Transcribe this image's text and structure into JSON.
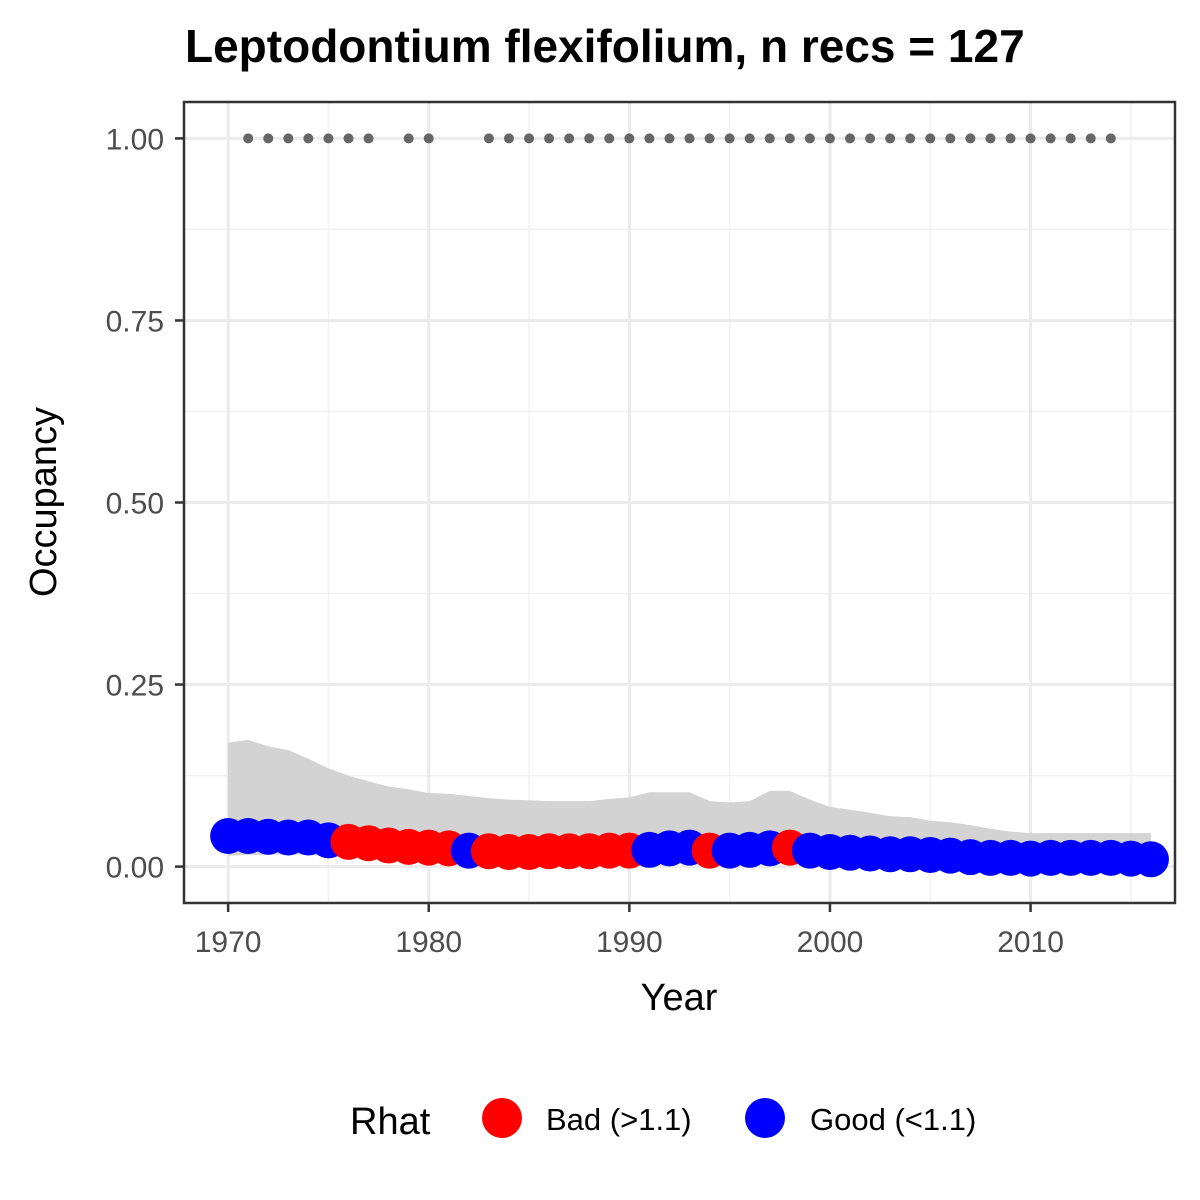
{
  "chart_data": {
    "type": "line",
    "title": "Leptodontium flexifolium, n recs = 127",
    "xlabel": "Year",
    "ylabel": "Occupancy",
    "xlim": [
      1967.8,
      2017.2
    ],
    "ylim": [
      -0.05,
      1.05
    ],
    "x_ticks": [
      1970,
      1980,
      1990,
      2000,
      2010
    ],
    "x_tick_labels": [
      "1970",
      "1980",
      "1990",
      "2000",
      "2010"
    ],
    "y_ticks": [
      0,
      0.25,
      0.5,
      0.75,
      1.0
    ],
    "y_tick_labels": [
      "0.00",
      "0.25",
      "0.50",
      "0.75",
      "1.00"
    ],
    "grid": true,
    "legend": {
      "title": "Rhat",
      "position": "bottom",
      "entries": [
        {
          "label": "Bad (>1.1)",
          "color": "#ff0000"
        },
        {
          "label": "Good (<1.1)",
          "color": "#0000ff"
        }
      ]
    },
    "colors": {
      "bad": "#ff0000",
      "good": "#0000ff",
      "ribbon": "#d3d3d3",
      "records": "#666666"
    },
    "years": [
      1970,
      1971,
      1972,
      1973,
      1974,
      1975,
      1976,
      1977,
      1978,
      1979,
      1980,
      1981,
      1982,
      1983,
      1984,
      1985,
      1986,
      1987,
      1988,
      1989,
      1990,
      1991,
      1992,
      1993,
      1994,
      1995,
      1996,
      1997,
      1998,
      1999,
      2000,
      2001,
      2002,
      2003,
      2004,
      2005,
      2006,
      2007,
      2008,
      2009,
      2010,
      2011,
      2012,
      2013,
      2014,
      2015,
      2016
    ],
    "occupancy": [
      0.042,
      0.042,
      0.041,
      0.04,
      0.04,
      0.036,
      0.034,
      0.032,
      0.029,
      0.027,
      0.026,
      0.025,
      0.022,
      0.021,
      0.02,
      0.02,
      0.021,
      0.021,
      0.021,
      0.022,
      0.022,
      0.023,
      0.025,
      0.026,
      0.022,
      0.022,
      0.023,
      0.025,
      0.026,
      0.022,
      0.02,
      0.019,
      0.018,
      0.017,
      0.017,
      0.016,
      0.015,
      0.013,
      0.012,
      0.012,
      0.011,
      0.012,
      0.012,
      0.012,
      0.012,
      0.011,
      0.01
    ],
    "rhat": [
      "Good",
      "Good",
      "Good",
      "Good",
      "Good",
      "Good",
      "Bad",
      "Bad",
      "Bad",
      "Bad",
      "Bad",
      "Bad",
      "Good",
      "Bad",
      "Bad",
      "Bad",
      "Bad",
      "Bad",
      "Bad",
      "Bad",
      "Bad",
      "Good",
      "Good",
      "Good",
      "Bad",
      "Good",
      "Good",
      "Good",
      "Bad",
      "Good",
      "Good",
      "Good",
      "Good",
      "Good",
      "Good",
      "Good",
      "Good",
      "Good",
      "Good",
      "Good",
      "Good",
      "Good",
      "Good",
      "Good",
      "Good",
      "Good",
      "Good"
    ],
    "ci_lower": [
      0.015,
      0.016,
      0.016,
      0.017,
      0.016,
      0.014,
      0.012,
      0.011,
      0.01,
      0.009,
      0.009,
      0.008,
      0.007,
      0.007,
      0.007,
      0.007,
      0.007,
      0.007,
      0.007,
      0.007,
      0.007,
      0.007,
      0.007,
      0.007,
      0.006,
      0.006,
      0.006,
      0.006,
      0.006,
      0.006,
      0.005,
      0.005,
      0.004,
      0.004,
      0.004,
      0.004,
      0.003,
      0.003,
      0.003,
      0.003,
      0.003,
      0.003,
      0.003,
      0.003,
      0.003,
      0.003,
      0.003
    ],
    "ci_upper": [
      0.17,
      0.174,
      0.165,
      0.16,
      0.148,
      0.135,
      0.125,
      0.117,
      0.11,
      0.106,
      0.101,
      0.1,
      0.097,
      0.094,
      0.092,
      0.091,
      0.09,
      0.09,
      0.09,
      0.093,
      0.095,
      0.102,
      0.102,
      0.102,
      0.09,
      0.088,
      0.09,
      0.104,
      0.104,
      0.092,
      0.082,
      0.078,
      0.074,
      0.069,
      0.068,
      0.063,
      0.061,
      0.057,
      0.052,
      0.048,
      0.046,
      0.046,
      0.046,
      0.046,
      0.046,
      0.046,
      0.046
    ],
    "record_years": [
      1971,
      1972,
      1973,
      1974,
      1975,
      1976,
      1977,
      1979,
      1980,
      1983,
      1984,
      1985,
      1986,
      1987,
      1988,
      1989,
      1990,
      1991,
      1992,
      1993,
      1994,
      1995,
      1996,
      1997,
      1998,
      1999,
      2000,
      2001,
      2002,
      2003,
      2004,
      2005,
      2006,
      2007,
      2008,
      2009,
      2010,
      2011,
      2012,
      2013,
      2014
    ],
    "record_value": 1.0
  }
}
